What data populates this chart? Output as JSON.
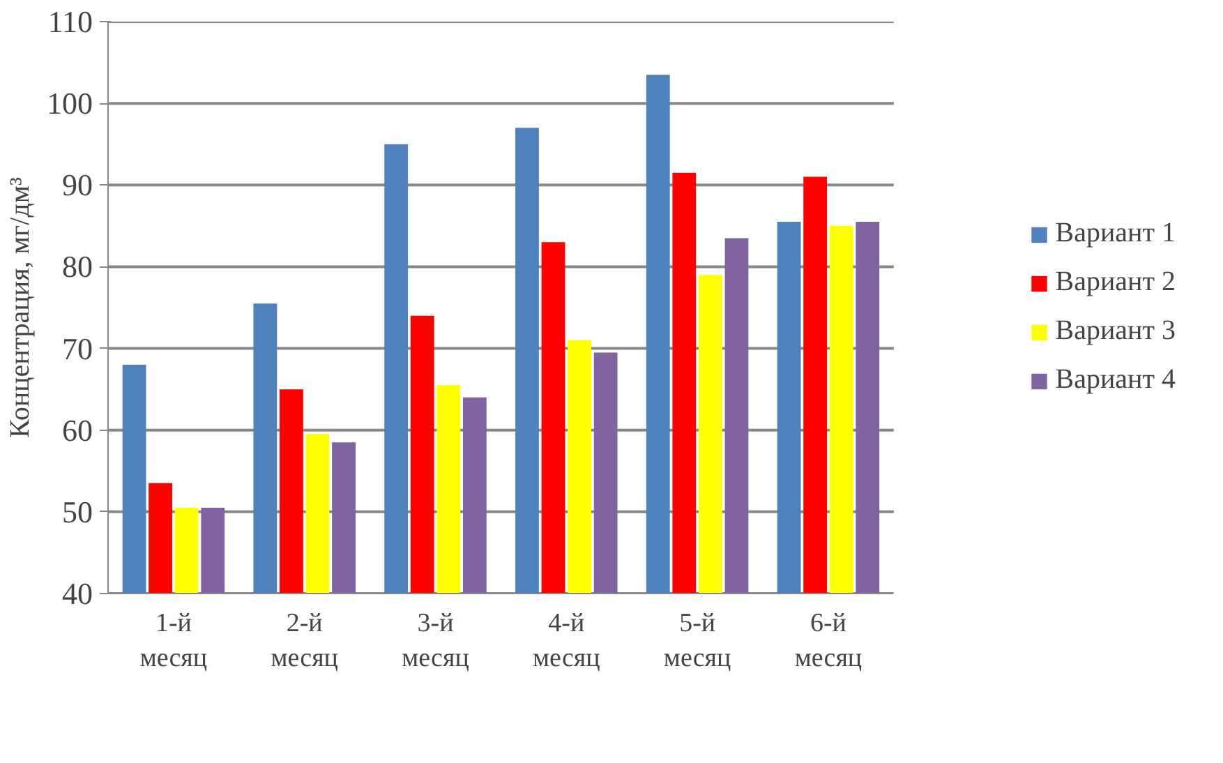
{
  "chart_data": {
    "type": "bar",
    "ylabel": "Концентрация, мг/дм³",
    "categories": [
      "1-й месяц",
      "2-й месяц",
      "3-й месяц",
      "4-й месяц",
      "5-й месяц",
      "6-й месяц"
    ],
    "series": [
      {
        "name": "Вариант 1",
        "color": "#4f81bd",
        "values": [
          68,
          75.5,
          95,
          97,
          103.5,
          85.5
        ]
      },
      {
        "name": "Вариант 2",
        "color": "#ff0000",
        "values": [
          53.5,
          65,
          74,
          83,
          91.5,
          91
        ]
      },
      {
        "name": "Вариант 3",
        "color": "#ffff00",
        "values": [
          50.5,
          59.5,
          65.5,
          71,
          79,
          85
        ]
      },
      {
        "name": "Вариант 4",
        "color": "#8064a2",
        "values": [
          50.5,
          58.5,
          64,
          69.5,
          83.5,
          85.5
        ]
      }
    ],
    "ylim": [
      40,
      110
    ],
    "yticks": [
      40,
      50,
      60,
      70,
      80,
      90,
      100,
      110
    ],
    "grid": "y",
    "legend": "right"
  }
}
